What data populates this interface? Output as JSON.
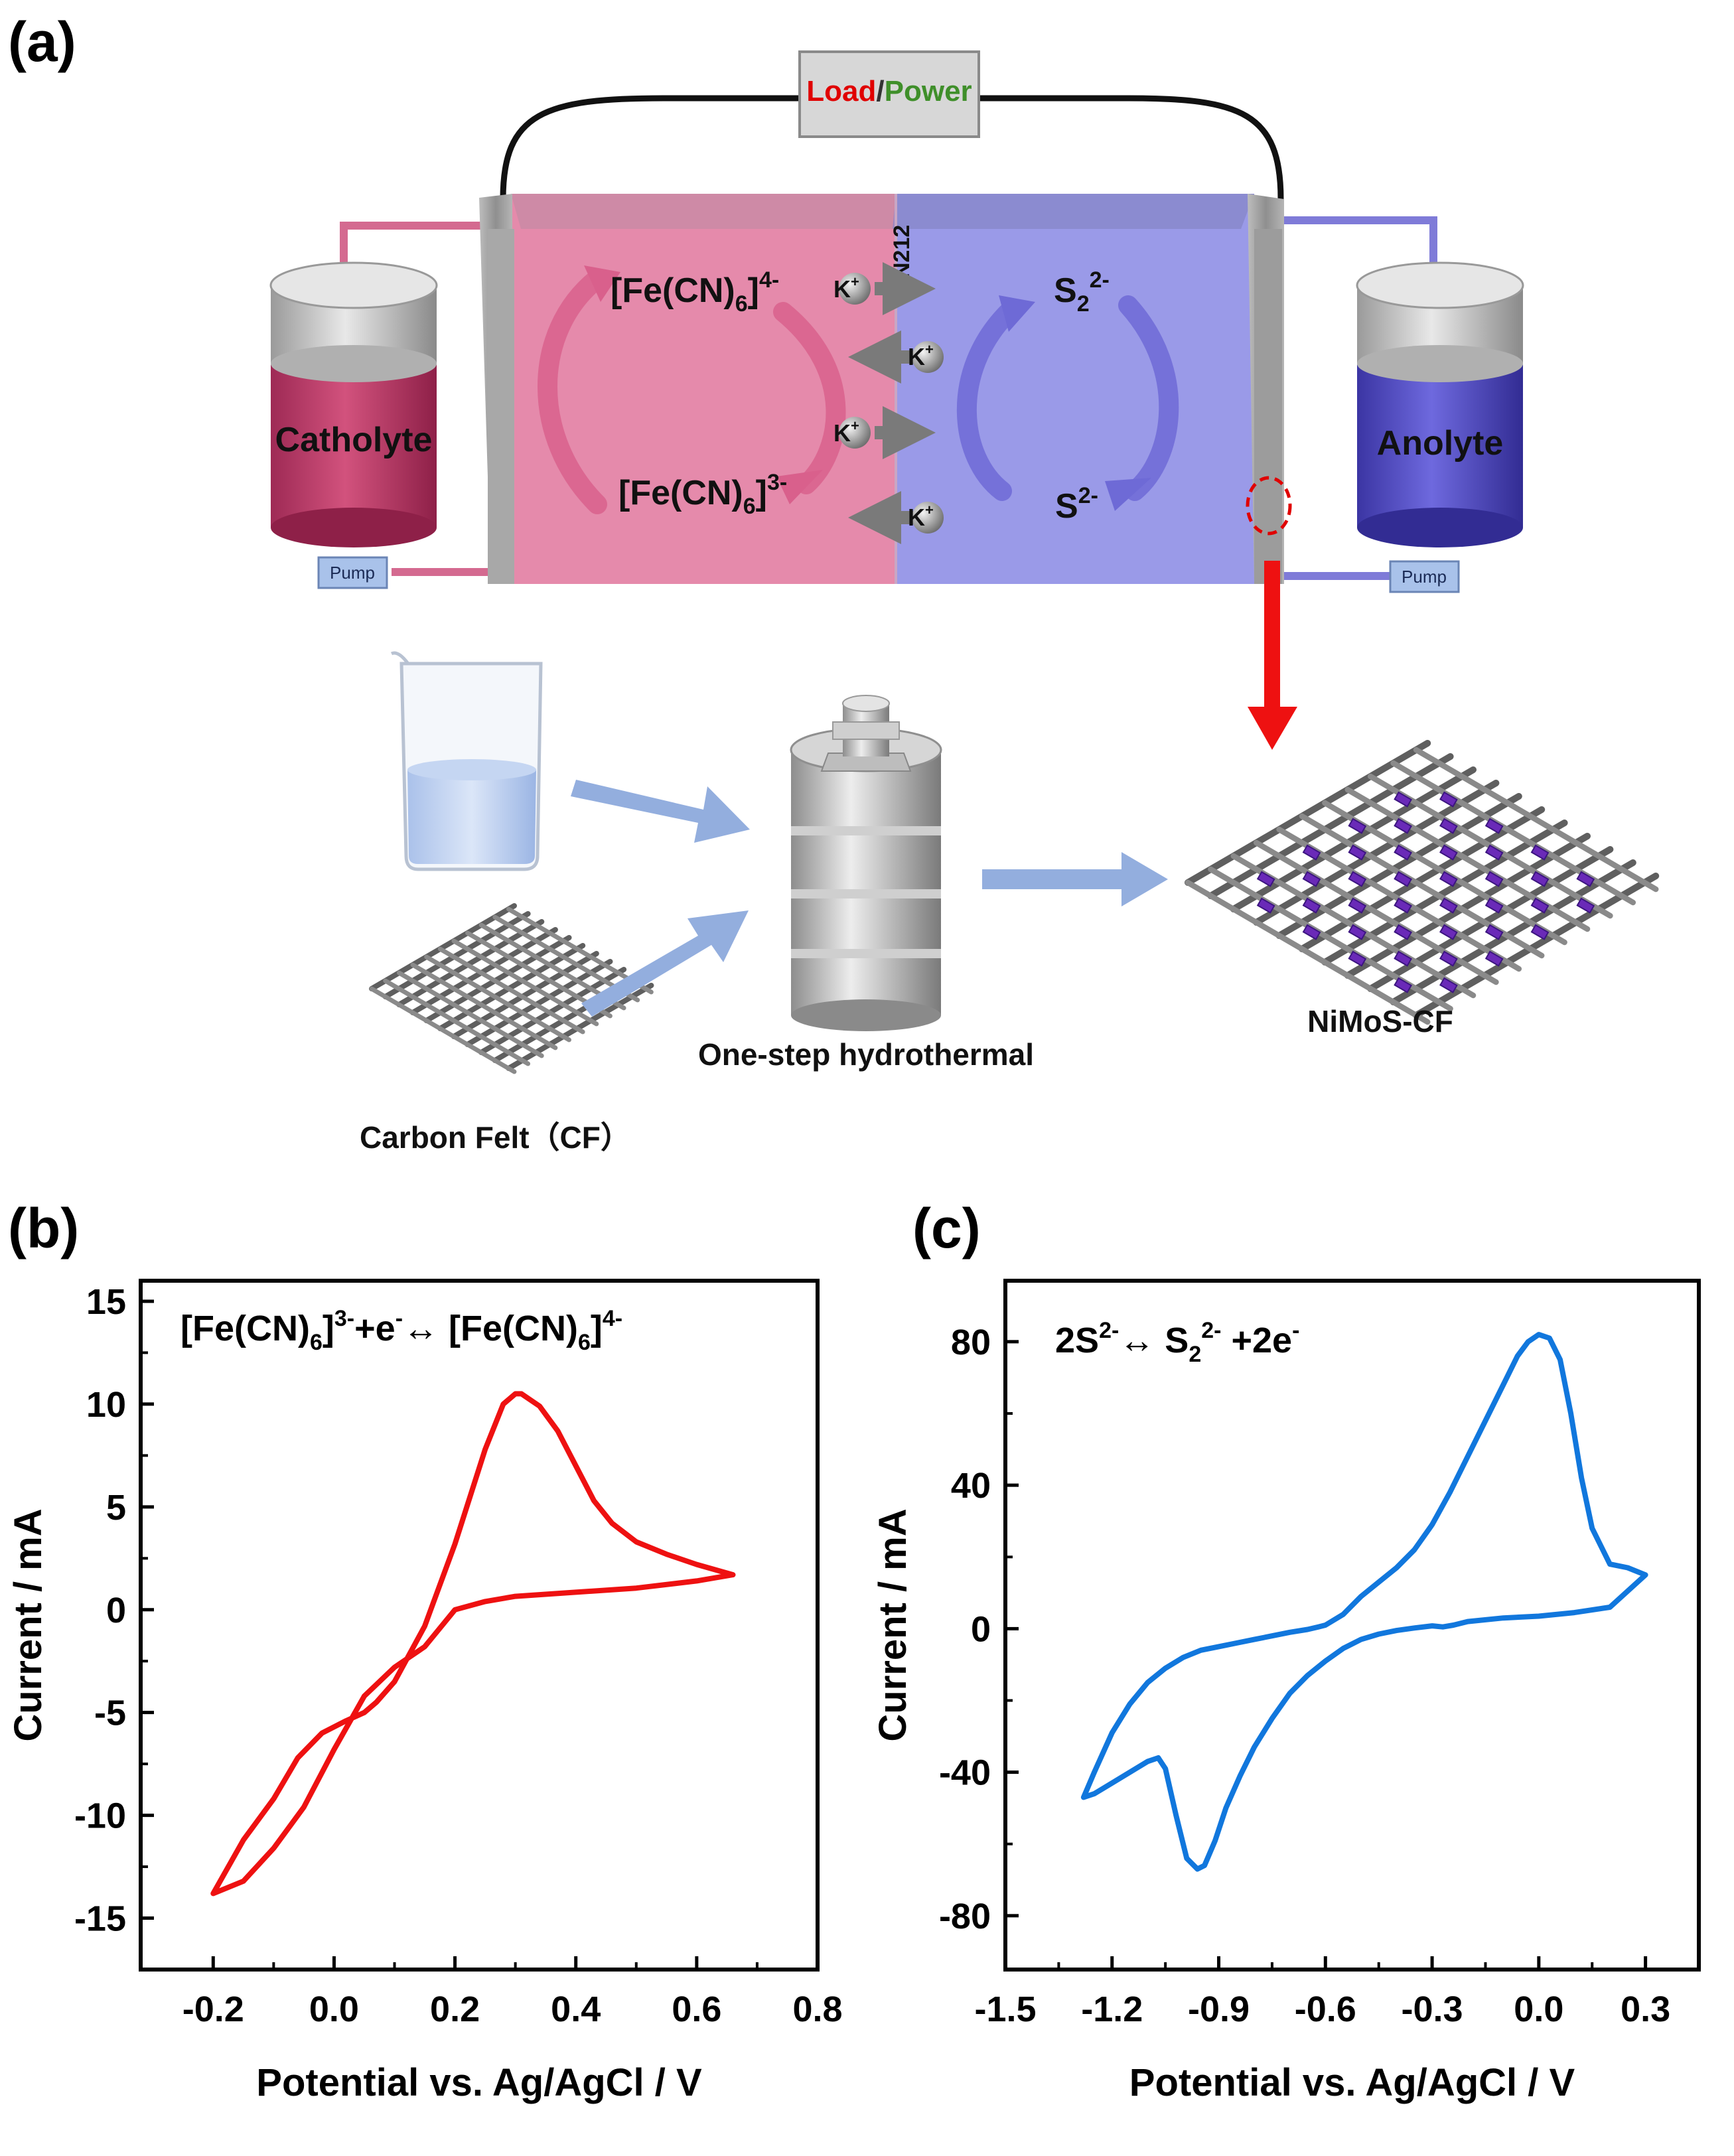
{
  "panels": {
    "a": "(a)",
    "b": "(b)",
    "c": "(c)"
  },
  "cell": {
    "load_label": "Load",
    "slash": "/",
    "power_label": "Power",
    "membrane_label": "N212",
    "catholyte_label": "Catholyte",
    "anolyte_label": "Anolyte",
    "pump_left": "Pump",
    "pump_right": "Pump",
    "ferro_label": "[Fe(CN)6]4-",
    "ferri_label": "[Fe(CN)6]3-",
    "disulfide_label": "S22-",
    "sulfide_label": "S2-",
    "ion_label": "K+"
  },
  "synthesis": {
    "cf_label": "Carbon Felt（CF）",
    "hydrothermal_label": "One-step hydrothermal",
    "product_label": "NiMoS-CF"
  },
  "colors": {
    "catholyte": "#e58aab",
    "anolyte": "#9a9ae8",
    "load_red": "#e00000",
    "power_green": "#3f8f2a",
    "cv_red": "#ee1111",
    "cv_blue": "#1177dd",
    "arrow_blue": "#93aede"
  },
  "chart_data": [
    {
      "type": "line",
      "panel": "(b)",
      "annotation": "[Fe(CN)6]3-+e- ↔ [Fe(CN)6]4-",
      "xlabel": "Potential vs. Ag/AgCl / V",
      "ylabel": "Current / mA",
      "xlim": [
        -0.32,
        0.8
      ],
      "ylim": [
        -17.5,
        16
      ],
      "xticks": [
        "-0.2",
        "0.0",
        "0.2",
        "0.4",
        "0.6",
        "0.8"
      ],
      "yticks": [
        "15",
        "10",
        "5",
        "0",
        "-5",
        "-10",
        "-15"
      ],
      "series": [
        {
          "color": "#ee1111",
          "x": [
            0.66,
            0.6,
            0.55,
            0.5,
            0.46,
            0.43,
            0.4,
            0.37,
            0.34,
            0.31,
            0.3,
            0.28,
            0.25,
            0.2,
            0.15,
            0.1,
            0.07,
            0.05,
            0.02,
            -0.02,
            -0.06,
            -0.1,
            -0.15,
            -0.2,
            -0.15,
            -0.1,
            -0.05,
            0.0,
            0.05,
            0.1,
            0.15,
            0.2,
            0.25,
            0.3,
            0.4,
            0.5,
            0.6,
            0.66
          ],
          "y": [
            1.7,
            2.2,
            2.7,
            3.3,
            4.2,
            5.3,
            7.0,
            8.7,
            9.9,
            10.5,
            10.5,
            10.0,
            7.8,
            3.2,
            -0.8,
            -3.5,
            -4.5,
            -5.0,
            -5.4,
            -6.0,
            -7.2,
            -9.2,
            -11.2,
            -13.8,
            -13.2,
            -11.6,
            -9.6,
            -6.8,
            -4.2,
            -2.8,
            -1.8,
            0.0,
            0.4,
            0.65,
            0.85,
            1.05,
            1.4,
            1.7
          ]
        }
      ]
    },
    {
      "type": "line",
      "panel": "(c)",
      "annotation": "2S2-↔ S22- +2e-",
      "xlabel": "Potential vs. Ag/AgCl / V",
      "ylabel": "Current / mA",
      "xlim": [
        -1.5,
        0.45
      ],
      "ylim": [
        -95,
        97
      ],
      "xticks": [
        "-1.5",
        "-1.2",
        "-0.9",
        "-0.6",
        "-0.3",
        "0.0",
        "0.3"
      ],
      "yticks": [
        "80",
        "40",
        "0",
        "-40",
        "-80"
      ],
      "series": [
        {
          "color": "#1177dd",
          "x": [
            0.3,
            0.25,
            0.2,
            0.15,
            0.12,
            0.09,
            0.06,
            0.03,
            0.0,
            -0.03,
            -0.06,
            -0.1,
            -0.15,
            -0.2,
            -0.25,
            -0.3,
            -0.35,
            -0.4,
            -0.45,
            -0.5,
            -0.55,
            -0.6,
            -0.62,
            -0.65,
            -0.7,
            -0.75,
            -0.8,
            -0.85,
            -0.9,
            -0.95,
            -1.0,
            -1.05,
            -1.1,
            -1.15,
            -1.2,
            -1.25,
            -1.28,
            -1.25,
            -1.2,
            -1.15,
            -1.1,
            -1.07,
            -1.05,
            -1.02,
            -0.99,
            -0.96,
            -0.94,
            -0.91,
            -0.88,
            -0.84,
            -0.8,
            -0.75,
            -0.7,
            -0.65,
            -0.6,
            -0.55,
            -0.5,
            -0.45,
            -0.4,
            -0.35,
            -0.3,
            -0.27,
            -0.24,
            -0.2,
            -0.1,
            0.0,
            0.1,
            0.2,
            0.3
          ],
          "y": [
            15,
            17,
            18,
            28,
            42,
            60,
            75,
            81,
            82,
            80,
            76,
            68,
            58,
            48,
            38,
            29,
            22,
            17,
            13,
            9,
            4,
            1,
            0.5,
            -0.2,
            -1,
            -2,
            -3,
            -4,
            -5,
            -6,
            -8,
            -11,
            -15,
            -21,
            -29,
            -40,
            -47,
            -46,
            -43,
            -40,
            -37,
            -36,
            -39,
            -52,
            -64,
            -67,
            -66,
            -59,
            -50,
            -41,
            -33,
            -25,
            -18,
            -13,
            -9,
            -5.5,
            -3,
            -1.5,
            -0.5,
            0.2,
            0.8,
            0.5,
            1.0,
            2.0,
            3.0,
            3.5,
            4.5,
            6.0,
            15
          ]
        }
      ]
    }
  ]
}
